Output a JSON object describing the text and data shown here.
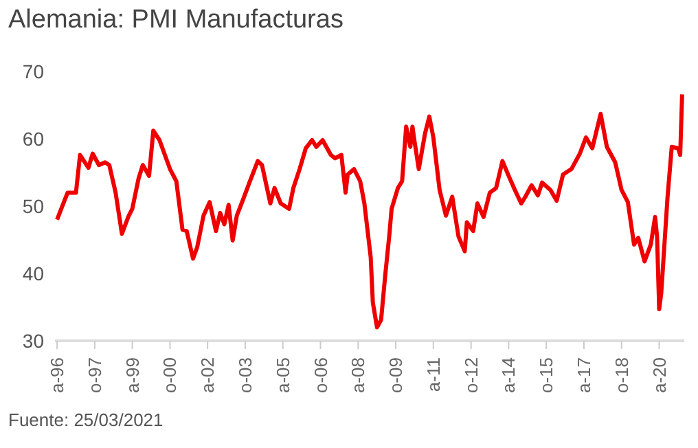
{
  "chart_data": {
    "type": "line",
    "title": "Alemania: PMI Manufacturas",
    "annotations": [
      "Fuente: 25/03/2021"
    ],
    "x": [
      "1996-04",
      "1996-06",
      "1996-09",
      "1997-01",
      "1997-03",
      "1997-07",
      "1997-09",
      "1997-12",
      "1998-03",
      "1998-05",
      "1998-08",
      "1998-11",
      "1999-02",
      "1999-04",
      "1999-07",
      "1999-09",
      "1999-12",
      "2000-02",
      "2000-05",
      "2000-10",
      "2001-01",
      "2001-04",
      "2001-06",
      "2001-09",
      "2001-11",
      "2002-02",
      "2002-05",
      "2002-08",
      "2002-10",
      "2002-12",
      "2003-02",
      "2003-04",
      "2003-06",
      "2003-09",
      "2003-12",
      "2004-04",
      "2004-06",
      "2004-10",
      "2004-12",
      "2005-03",
      "2005-07",
      "2005-09",
      "2005-12",
      "2006-03",
      "2006-06",
      "2006-08",
      "2006-11",
      "2007-03",
      "2007-05",
      "2007-08",
      "2007-10",
      "2007-11",
      "2008-02",
      "2008-05",
      "2008-07",
      "2008-10",
      "2008-11",
      "2009-01",
      "2009-03",
      "2009-05",
      "2009-07",
      "2009-08",
      "2009-11",
      "2010-01",
      "2010-03",
      "2010-05",
      "2010-06",
      "2010-07",
      "2010-09",
      "2010-12",
      "2011-02",
      "2011-04",
      "2011-07",
      "2011-10",
      "2012-01",
      "2012-04",
      "2012-07",
      "2012-08",
      "2012-11",
      "2013-01",
      "2013-04",
      "2013-07",
      "2013-10",
      "2014-01",
      "2014-04",
      "2014-07",
      "2014-10",
      "2014-12",
      "2015-03",
      "2015-06",
      "2015-08",
      "2015-12",
      "2016-03",
      "2016-06",
      "2016-10",
      "2017-02",
      "2017-05",
      "2017-08",
      "2017-12",
      "2018-03",
      "2018-07",
      "2018-10",
      "2019-01",
      "2019-04",
      "2019-06",
      "2019-09",
      "2019-12",
      "2020-02",
      "2020-03",
      "2020-04",
      "2020-05",
      "2020-08",
      "2020-10",
      "2021-01",
      "2021-02",
      "2021-03"
    ],
    "series": [
      {
        "color": "#ee0000",
        "values": [
          48.0,
          49.6,
          52.0,
          52.0,
          57.6,
          55.7,
          57.8,
          56.1,
          56.5,
          56.1,
          52.0,
          45.9,
          48.4,
          49.6,
          54.1,
          56.1,
          54.5,
          61.2,
          59.8,
          55.5,
          53.7,
          46.5,
          46.3,
          42.2,
          43.9,
          48.6,
          50.6,
          46.3,
          49.0,
          47.3,
          50.2,
          44.9,
          48.6,
          51.0,
          53.5,
          56.7,
          56.1,
          50.4,
          52.7,
          50.4,
          49.6,
          52.7,
          55.5,
          58.6,
          59.8,
          58.8,
          59.8,
          57.6,
          57.1,
          57.6,
          52.0,
          54.7,
          55.5,
          53.7,
          50.4,
          42.4,
          35.7,
          32.0,
          33.1,
          39.8,
          45.9,
          49.6,
          52.7,
          53.7,
          61.8,
          58.8,
          61.8,
          59.6,
          55.5,
          60.8,
          63.3,
          60.2,
          52.4,
          48.6,
          51.4,
          45.5,
          43.3,
          47.6,
          46.3,
          50.4,
          48.4,
          52.0,
          52.7,
          56.7,
          54.5,
          52.4,
          50.4,
          51.4,
          53.1,
          51.6,
          53.5,
          52.4,
          50.8,
          54.7,
          55.5,
          57.8,
          60.2,
          58.6,
          63.7,
          58.8,
          56.5,
          52.4,
          50.6,
          44.3,
          45.3,
          41.8,
          44.3,
          48.4,
          45.5,
          34.7,
          37.1,
          51.4,
          58.8,
          58.6,
          57.6,
          66.6
        ]
      }
    ],
    "xlim": [
      "1996-03",
      "2021-04"
    ],
    "xticks": [
      {
        "value": "1996-04",
        "label": "a-96"
      },
      {
        "value": "1997-10",
        "label": "o-97"
      },
      {
        "value": "1999-04",
        "label": "a-99"
      },
      {
        "value": "2000-10",
        "label": "o-00"
      },
      {
        "value": "2002-04",
        "label": "a-02"
      },
      {
        "value": "2003-10",
        "label": "o-03"
      },
      {
        "value": "2005-04",
        "label": "a-05"
      },
      {
        "value": "2006-10",
        "label": "o-06"
      },
      {
        "value": "2008-04",
        "label": "a-08"
      },
      {
        "value": "2009-10",
        "label": "o-09"
      },
      {
        "value": "2011-04",
        "label": "a-11"
      },
      {
        "value": "2012-10",
        "label": "o-12"
      },
      {
        "value": "2014-04",
        "label": "a-14"
      },
      {
        "value": "2015-10",
        "label": "o-15"
      },
      {
        "value": "2017-04",
        "label": "a-17"
      },
      {
        "value": "2018-10",
        "label": "o-18"
      },
      {
        "value": "2020-04",
        "label": "a-20"
      }
    ],
    "ylim": [
      30,
      70
    ],
    "yticks": [
      30,
      40,
      50,
      60,
      70
    ]
  }
}
